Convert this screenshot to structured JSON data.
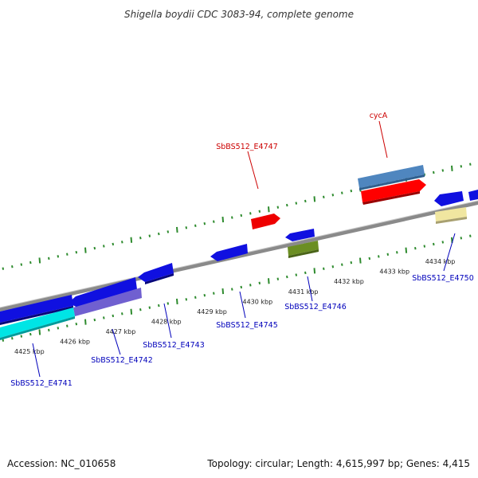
{
  "title": "Shigella boydii CDC 3083-94, complete genome",
  "footer": {
    "accession": "Accession: NC_010658",
    "topology": "Topology: circular; Length: 4,615,997 bp; Genes: 4,415"
  },
  "colors": {
    "backbone": "#8a8a8a",
    "tick": "#2e8b2e",
    "forward_label": "#cc0000",
    "reverse_label": "#0000bb"
  },
  "kbp_labels": [
    {
      "kbp": 4425,
      "text": "4425 kbp"
    },
    {
      "kbp": 4426,
      "text": "4426 kbp"
    },
    {
      "kbp": 4427,
      "text": "4427 kbp"
    },
    {
      "kbp": 4428,
      "text": "4428 kbp"
    },
    {
      "kbp": 4429,
      "text": "4429 kbp"
    },
    {
      "kbp": 4430,
      "text": "4430 kbp"
    },
    {
      "kbp": 4431,
      "text": "4431 kbp"
    },
    {
      "kbp": 4432,
      "text": "4432 kbp"
    },
    {
      "kbp": 4433,
      "text": "4433 kbp"
    },
    {
      "kbp": 4434,
      "text": "4434 kbp"
    }
  ],
  "features": [
    {
      "name": "cycA",
      "color": "#4f86bf",
      "strand": "+",
      "kind": "gene"
    },
    {
      "name": "cycA-cds",
      "color": "#ff0000",
      "strand": "+",
      "kind": "cds"
    },
    {
      "name": "SbBS512_E4747",
      "color": "#ee0000",
      "strand": "+",
      "kind": "cds"
    },
    {
      "name": "SbBS512_E4741",
      "color": "#00e5e5",
      "strand": "-",
      "kind": "gene"
    },
    {
      "name": "SbBS512_E4742",
      "color": "#7060d0",
      "strand": "-",
      "kind": "gene"
    },
    {
      "name": "SbBS512_E4743",
      "color": "#1010e0",
      "strand": "-",
      "kind": "cds"
    },
    {
      "name": "SbBS512_E4745",
      "color": "#1010e0",
      "strand": "-",
      "kind": "cds"
    },
    {
      "name": "SbBS512_E4746",
      "color": "#6b8e23",
      "strand": "-",
      "kind": "gene"
    },
    {
      "name": "SbBS512_E4750",
      "color": "#f0e6a0",
      "strand": "-",
      "kind": "gene"
    }
  ],
  "labels": {
    "cycA": "cycA",
    "SbBS512_E4747": "SbBS512_E4747",
    "SbBS512_E4741": "SbBS512_E4741",
    "SbBS512_E4742": "SbBS512_E4742",
    "SbBS512_E4743": "SbBS512_E4743",
    "SbBS512_E4745": "SbBS512_E4745",
    "SbBS512_E4746": "SbBS512_E4746",
    "SbBS512_E4750": "SbBS512_E4750"
  }
}
